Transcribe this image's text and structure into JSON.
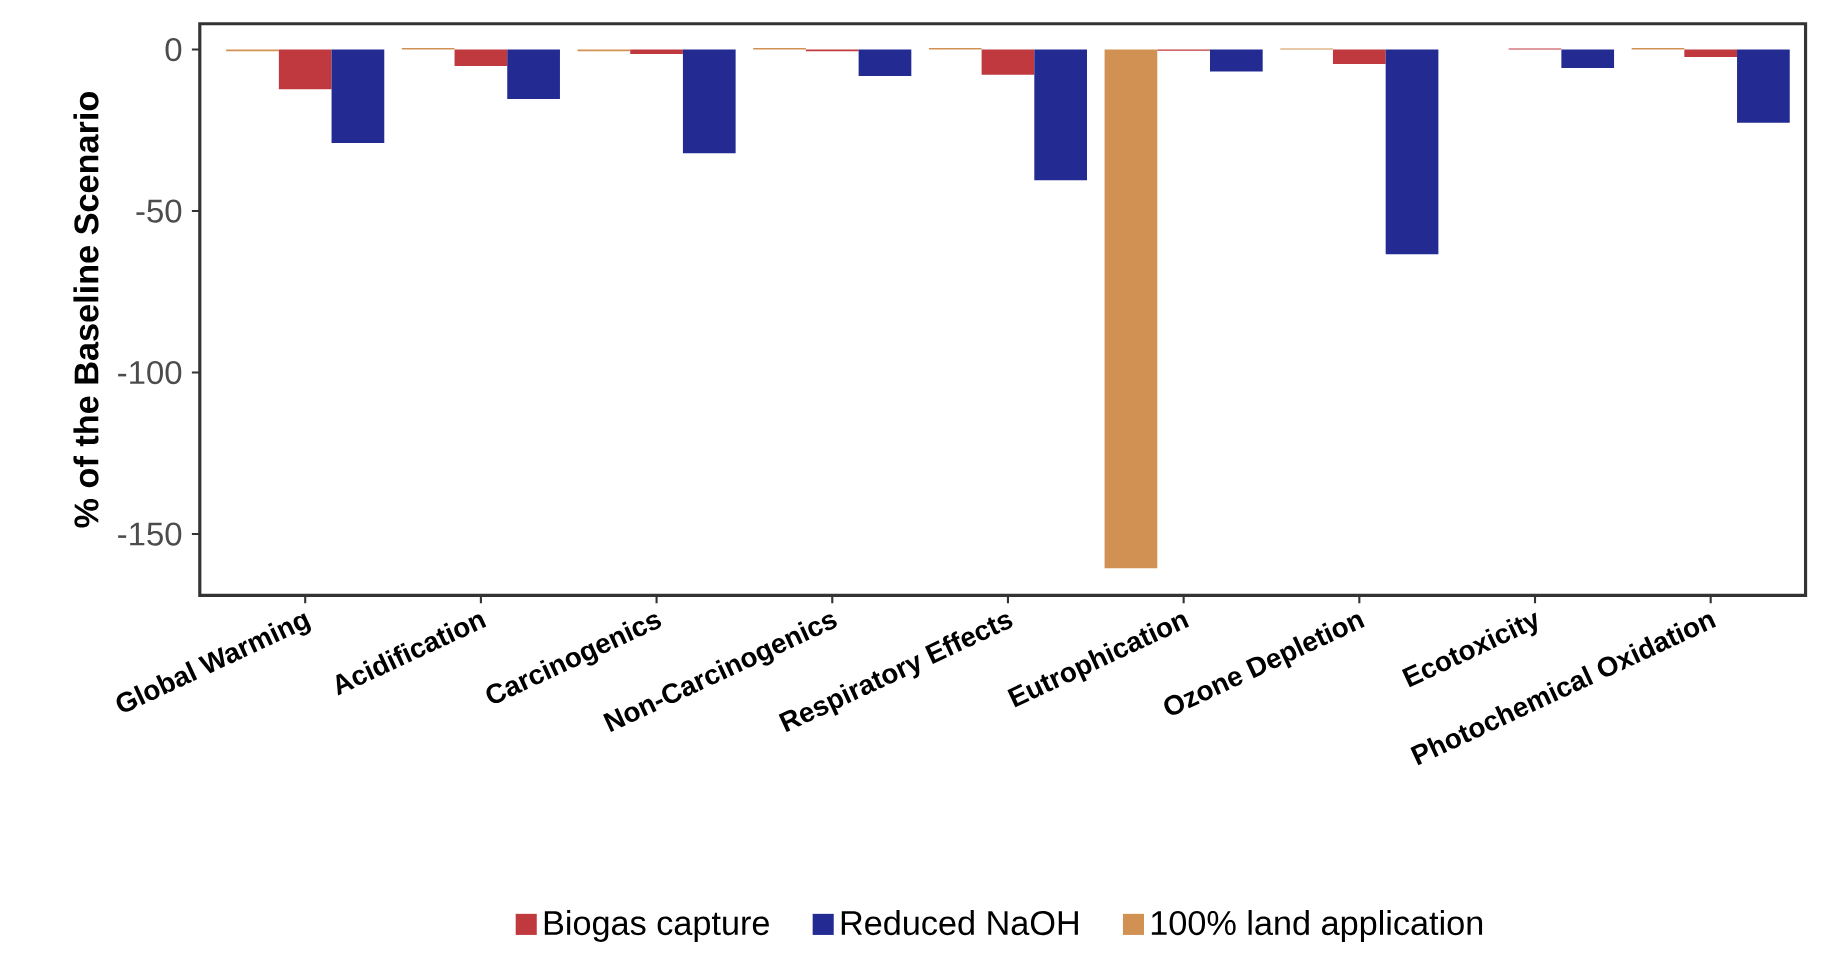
{
  "chart_data": {
    "type": "bar",
    "ylabel": "% of the Baseline Scenario",
    "categories": [
      "Global Warming",
      "Acidification",
      "Carcinogenics",
      "Non-Carcinogenics",
      "Respiratory Effects",
      "Eutrophication",
      "Ozone Depletion",
      "Ecotoxicity",
      "Photochemical Oxidation"
    ],
    "series": [
      {
        "name": "Biogas capture",
        "color": "#c0393f",
        "values": [
          -12.3,
          -5.1,
          -1.4,
          -0.5,
          -7.8,
          -0.4,
          -4.5,
          0.3,
          -2.3
        ]
      },
      {
        "name": "Reduced NaOH",
        "color": "#232b93",
        "values": [
          -28.9,
          -15.3,
          -32.1,
          -8.2,
          -40.5,
          -6.8,
          -63.4,
          -5.7,
          -22.7
        ]
      },
      {
        "name": "100% land application",
        "color": "#d19152",
        "values": [
          -0.5,
          0.5,
          -0.5,
          0.5,
          0.5,
          -160.6,
          0.3,
          null,
          0.5
        ]
      }
    ],
    "ylim": [
      -169,
      8
    ],
    "yticks": [
      0,
      -50,
      -100,
      -150
    ],
    "grid": false,
    "legend": "bottom"
  }
}
